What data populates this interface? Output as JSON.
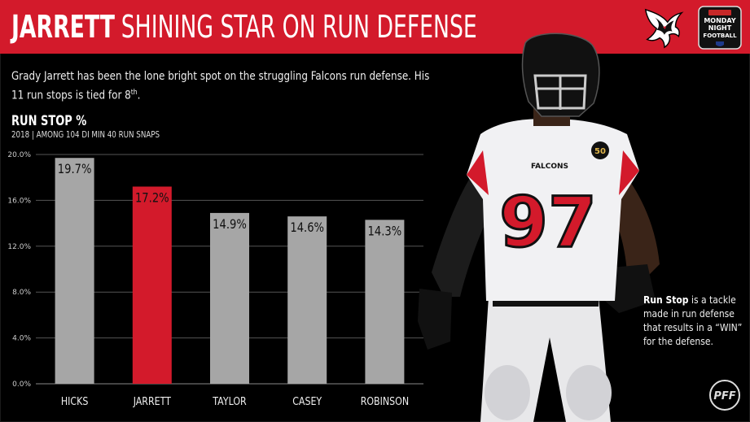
{
  "banner": {
    "name": "JARRETT",
    "title_rest": "SHINING STAR ON RUN DEFENSE",
    "color": "#d31a2b"
  },
  "logos": {
    "team": "falcons-logo",
    "broadcast_lines": [
      "MONDAY",
      "NIGHT",
      "FOOTBALL"
    ]
  },
  "subtitle": {
    "text": "Grady Jarrett has been the lone bright spot on the struggling Falcons run defense. His 11 run stops is tied for 8",
    "superscript": "th",
    "end": "."
  },
  "player": {
    "jersey_number": "97",
    "team_wordmark": "FALCONS",
    "patch": "50"
  },
  "note": {
    "term": "Run Stop",
    "text": " is a tackle made in run defense that results in a “WIN” for the defense."
  },
  "pff_logo": "PFF",
  "chart_data": {
    "type": "bar",
    "title": "RUN STOP %",
    "subtitle": "2018 | AMONG 104 DI MIN 40 RUN SNAPS",
    "xlabel": "",
    "ylabel": "",
    "categories": [
      "HICKS",
      "JARRETT",
      "TAYLOR",
      "CASEY",
      "ROBINSON"
    ],
    "values": [
      19.7,
      17.2,
      14.9,
      14.6,
      14.3
    ],
    "value_labels": [
      "19.7%",
      "17.2%",
      "14.9%",
      "14.6%",
      "14.3%"
    ],
    "colors": [
      "#a6a6a6",
      "#d31a2b",
      "#a6a6a6",
      "#a6a6a6",
      "#a6a6a6"
    ],
    "ylim": [
      0,
      20
    ],
    "yticks": [
      0,
      4,
      8,
      12,
      16,
      20
    ],
    "ytick_labels": [
      "0.0%",
      "4.0%",
      "8.0%",
      "12.0%",
      "16.0%",
      "20.0%"
    ],
    "grid": true,
    "legend": "none"
  }
}
